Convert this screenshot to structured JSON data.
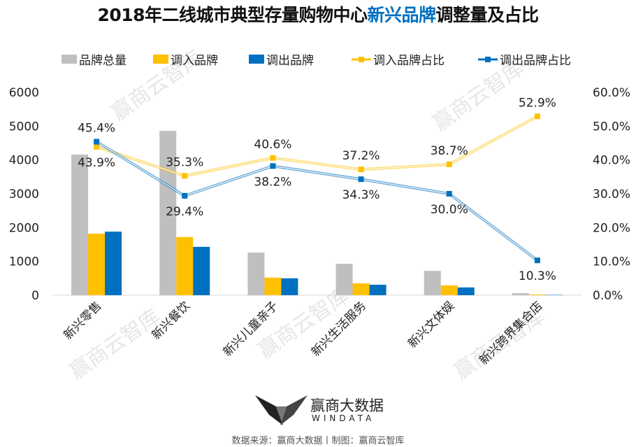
{
  "title": {
    "prefix": "2018年二线城市典型存量购物中心",
    "highlight": "新兴品牌",
    "suffix": "调整量及占比"
  },
  "colors": {
    "total": "#BFBFBF",
    "in": "#FFC000",
    "out": "#0070C0",
    "highlight": "#0070C0"
  },
  "watermark": "赢商云智库",
  "footer": {
    "brand": "赢商大数据",
    "brand_en": "WINDATA",
    "source": "数据来源：赢商大数据丨制图：赢商云智库"
  },
  "chart_data": {
    "type": "bar+line",
    "categories": [
      "新兴零售",
      "新兴餐饮",
      "新兴儿童亲子",
      "新兴生活服务",
      "新兴文体娱",
      "新兴跨界集合店"
    ],
    "legend_position": "top",
    "grid": false,
    "y_left": {
      "lim": [
        0,
        6000
      ],
      "ticks": [
        "0",
        "1000",
        "2000",
        "3000",
        "4000",
        "5000",
        "6000"
      ]
    },
    "y_right": {
      "lim": [
        0,
        60
      ],
      "ticks": [
        "0.0%",
        "10.0%",
        "20.0%",
        "30.0%",
        "40.0%",
        "50.0%",
        "60.0%"
      ]
    },
    "bar_series": [
      {
        "name": "品牌总量",
        "values": [
          4160,
          4860,
          1260,
          930,
          720,
          60
        ]
      },
      {
        "name": "调入品牌",
        "values": [
          1820,
          1720,
          520,
          350,
          290,
          20
        ]
      },
      {
        "name": "调出品牌",
        "values": [
          1880,
          1430,
          500,
          310,
          230,
          10
        ]
      }
    ],
    "line_series": [
      {
        "name": "调入品牌占比",
        "values": [
          43.9,
          35.3,
          40.6,
          37.2,
          38.7,
          52.9
        ],
        "labels": [
          "43.9%",
          "35.3%",
          "40.6%",
          "37.2%",
          "38.7%",
          "52.9%"
        ]
      },
      {
        "name": "调出品牌占比",
        "values": [
          45.4,
          29.4,
          38.2,
          34.3,
          30.0,
          10.3
        ],
        "labels": [
          "45.4%",
          "29.4%",
          "38.2%",
          "34.3%",
          "30.0%",
          "10.3%"
        ]
      }
    ]
  }
}
